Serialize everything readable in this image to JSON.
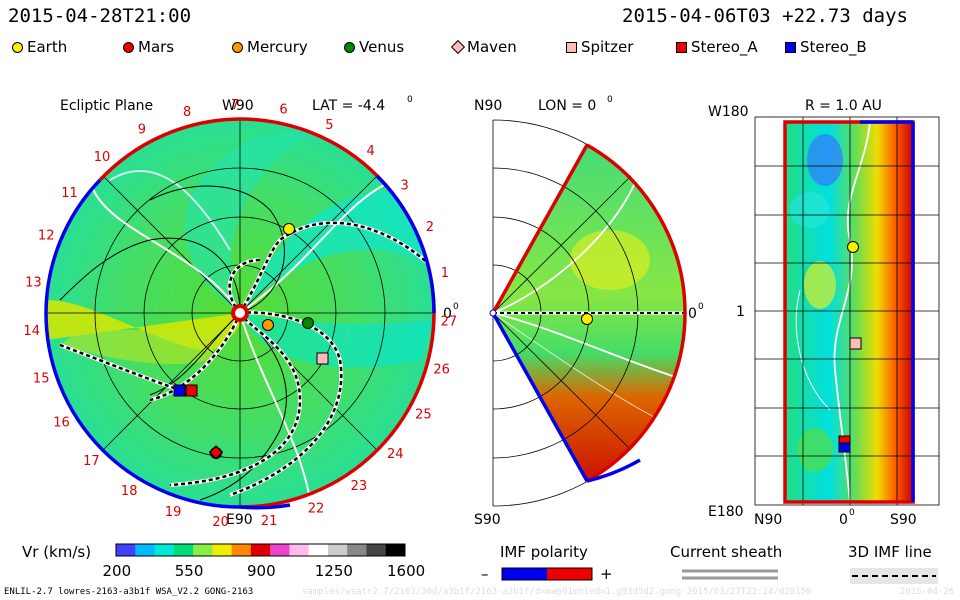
{
  "header": {
    "timestamp_left": "2015-04-28T21:00",
    "timestamp_right": "2015-04-06T03 +22.73 days"
  },
  "legend": [
    {
      "label": "Earth",
      "shape": "circle",
      "color": "#ffee00"
    },
    {
      "label": "Mars",
      "shape": "circle",
      "color": "#ee0000"
    },
    {
      "label": "Mercury",
      "shape": "circle",
      "color": "#ff9900"
    },
    {
      "label": "Venus",
      "shape": "circle",
      "color": "#008800"
    },
    {
      "label": "Maven",
      "shape": "diamond",
      "color": "#ffbbbb"
    },
    {
      "label": "Spitzer",
      "shape": "square",
      "color": "#ffbbbb"
    },
    {
      "label": "Stereo_A",
      "shape": "square",
      "color": "#ee0000"
    },
    {
      "label": "Stereo_B",
      "shape": "square",
      "color": "#0000ee"
    }
  ],
  "ecliptic": {
    "title": "Ecliptic Plane",
    "top_label": "W90",
    "bottom_label": "E90",
    "right_label": "0",
    "lat_label": "LAT = -4.4",
    "degree_sup": "0",
    "rotation_numbers": [
      "1",
      "2",
      "3",
      "4",
      "5",
      "6",
      "7",
      "8",
      "9",
      "10",
      "11",
      "12",
      "13",
      "14",
      "15",
      "16",
      "17",
      "18",
      "19",
      "20",
      "21",
      "22",
      "23",
      "24",
      "25",
      "26",
      "27"
    ]
  },
  "meridional": {
    "title": "LON = 0",
    "top_label": "N90",
    "bottom_label": "S90",
    "right_label": "0",
    "degree_sup": "0"
  },
  "radial": {
    "title": "R = 1.0 AU",
    "top_left_label": "W180",
    "bottom_left_label": "E180",
    "mid_left_label": "1",
    "bottom_labels": [
      "N90",
      "0",
      "S90"
    ],
    "degree_sup": "0"
  },
  "colorbar": {
    "label": "Vr (km/s)",
    "ticks": [
      "200",
      "550",
      "900",
      "1250",
      "1600"
    ],
    "colors": [
      "#4040ff",
      "#00bbff",
      "#00e8d8",
      "#00dd77",
      "#88ee44",
      "#eeee00",
      "#ff8800",
      "#dd0000",
      "#ee44cc",
      "#ffbbee",
      "#ffffff",
      "#cccccc",
      "#888888",
      "#444444",
      "#000000"
    ]
  },
  "imf_polarity": {
    "label": "IMF polarity",
    "minus": "–",
    "plus": "+"
  },
  "current_sheath": {
    "label": "Current sheath"
  },
  "imf_line": {
    "label": "3D IMF line"
  },
  "footer": {
    "model_info": "ENLIL-2.7 lowres-2163-a3b1f WSA_V2.2 GONG-2163",
    "ghost_info": "samples/wsatr2.7/2163/30d/a3b1f/2163-a3b1f/d=map01mn1ed=1.g93d5d2.gong-2015/03/27T22:24/d20150",
    "ghost_right": "2015-04-26"
  }
}
